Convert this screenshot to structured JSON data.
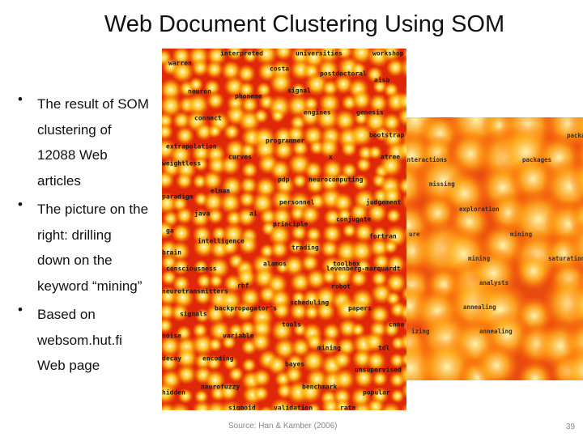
{
  "title": "Web Document Clustering Using SOM",
  "bullets": [
    [
      "The result of SOM",
      "clustering of",
      "12088 Web",
      "articles"
    ],
    [
      "The picture on the",
      "right: drilling",
      "down on the",
      "keyword “mining”"
    ],
    [
      "Based on",
      "websom.hut.fi",
      "Web page"
    ]
  ],
  "map_overview": {
    "words": [
      "interpreted",
      "universities",
      "workshop",
      "warren",
      "costa",
      "postdoctoral",
      "aisb",
      "neuron",
      "phoneme",
      "signal",
      "connect",
      "engines",
      "genesis",
      "programmer",
      "bootstrap",
      "extrapolation",
      "curves",
      "x",
      "weightless",
      "atree",
      "pdp",
      "neurocomputing",
      "elman",
      "paradigm",
      "personnel",
      "judgement",
      "java",
      "ai",
      "principle",
      "conjugate",
      "ga",
      "fortran",
      "intelligence",
      "trading",
      "brain",
      "toolbox",
      "alamos",
      "consciousness",
      "levenberg-marquardt",
      "rbf",
      "robot",
      "neurotransmitters",
      "scheduling",
      "signals",
      "backpropagator's",
      "papers",
      "cnne",
      "tools",
      "noise",
      "variable",
      "mining",
      "tdl",
      "decay",
      "encoding",
      "bayes",
      "unsupervised",
      "neurofuzzy",
      "benchmark",
      "hidden",
      "popular",
      "sigmoid",
      "validation",
      "rate"
    ]
  },
  "map_zoom": {
    "words": [
      "packa",
      "interactions",
      "packages",
      "missing",
      "exploration",
      "ure",
      "mining",
      "mining",
      "saturation",
      "analysts",
      "annealing",
      "izing",
      "annealing"
    ]
  },
  "source": "Source: Han & Kamber (2006)",
  "page_number": "39"
}
